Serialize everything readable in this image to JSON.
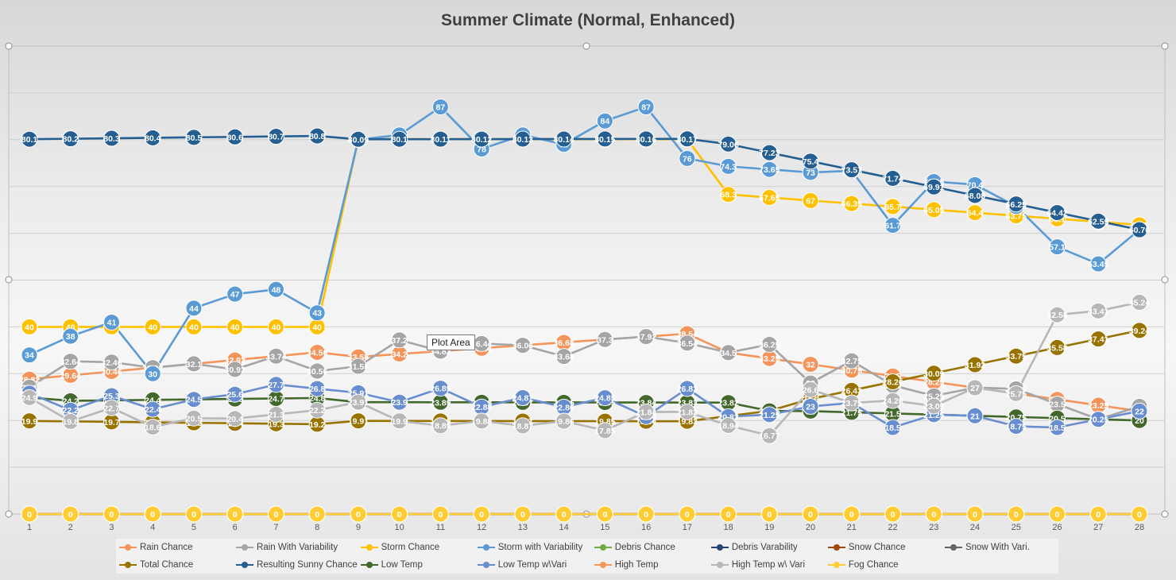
{
  "tooltip": "Plot Area",
  "chart_data": {
    "type": "line",
    "title": "Summer Climate (Normal, Enhanced)",
    "xlabel": "",
    "ylabel": "",
    "categories": [
      "1",
      "2",
      "3",
      "4",
      "5",
      "6",
      "7",
      "8",
      "9",
      "10",
      "11",
      "12",
      "13",
      "14",
      "15",
      "16",
      "17",
      "18",
      "19",
      "20",
      "21",
      "22",
      "23",
      "24",
      "25",
      "26",
      "27",
      "28"
    ],
    "ylim": [
      0,
      100
    ],
    "gridlines": true,
    "legend_position": "bottom",
    "series": [
      {
        "name": "Rain Chance",
        "color": "#F4945A",
        "values": [
          28.82,
          29.64,
          30.46,
          31.28,
          32.1,
          32.92,
          33.74,
          34.56,
          33.58,
          34.2,
          34.82,
          35.44,
          36.06,
          36.68,
          37.3,
          37.92,
          38.54,
          34.5,
          33.25,
          32,
          30.75,
          29.5,
          28.25,
          27,
          25.75,
          24.5,
          23.25,
          22
        ]
      },
      {
        "name": "Rain With Variability",
        "color": "#A5A5A5",
        "values": [
          27.1,
          32.64,
          32.46,
          31.28,
          32.1,
          30.92,
          33.74,
          30.56,
          31.58,
          37.2,
          34.82,
          36.44,
          36.06,
          33.68,
          37.3,
          37.92,
          36.54,
          34.5,
          36.25,
          28,
          32.75,
          27.5,
          25.25,
          27,
          26.75,
          23.5,
          20.25,
          23
        ]
      },
      {
        "name": "Storm Chance",
        "color": "#FFC000",
        "values": [
          40,
          40,
          40,
          40,
          40,
          40,
          40,
          40,
          80.1,
          80.1,
          80.1,
          80.1,
          80.1,
          80.1,
          80.1,
          80.1,
          80.1,
          68.3,
          67.65,
          67,
          66.35,
          65.7,
          65.05,
          64.4,
          63.75,
          63.1,
          62.45,
          61.8
        ]
      },
      {
        "name": "Storm with Variability",
        "color": "#5B9BD5",
        "values": [
          34,
          38,
          41,
          30,
          44,
          47,
          48,
          43,
          80,
          81,
          87,
          78,
          81,
          79,
          84,
          87,
          76,
          74.3,
          73.65,
          73,
          73.35,
          61.7,
          71.05,
          70.4,
          65.75,
          57.1,
          53.45,
          60.76
        ]
      },
      {
        "name": "Debris Chance",
        "color": "#70AD47",
        "values": [
          0,
          0,
          0,
          0,
          0,
          0,
          0,
          0,
          0,
          0,
          0,
          0,
          0,
          0,
          0,
          0,
          0,
          0,
          0,
          0,
          0,
          0,
          0,
          0,
          0,
          0,
          0,
          0
        ]
      },
      {
        "name": "Debris Varability",
        "color": "#264478",
        "values": [
          0,
          0,
          0,
          0,
          0,
          0,
          0,
          0,
          0,
          0,
          0,
          0,
          0,
          0,
          0,
          0,
          0,
          0,
          0,
          0,
          0,
          0,
          0,
          0,
          0,
          0,
          0,
          0
        ]
      },
      {
        "name": "Snow Chance",
        "color": "#9E480E",
        "values": [
          0,
          0,
          0,
          0,
          0,
          0,
          0,
          0,
          0,
          0,
          0,
          0,
          0,
          0,
          0,
          0,
          0,
          0,
          0,
          0,
          0,
          0,
          0,
          0,
          0,
          0,
          0,
          0
        ]
      },
      {
        "name": "Snow With Vari.",
        "color": "#636363",
        "values": [
          0,
          0,
          0,
          0,
          0,
          0,
          0,
          0,
          0,
          0,
          0,
          0,
          0,
          0,
          0,
          0,
          0,
          0,
          0,
          0,
          0,
          0,
          0,
          0,
          0,
          0,
          0,
          0
        ]
      },
      {
        "name": "Total Chance",
        "color": "#997300",
        "values": [
          19.9,
          19.8,
          19.7,
          19.6,
          19.5,
          19.4,
          19.3,
          19.2,
          19.91,
          19.9,
          19.89,
          19.88,
          19.87,
          19.86,
          19.85,
          19.84,
          19.83,
          20.94,
          22.05,
          24.6,
          26.43,
          28.26,
          30.09,
          31.92,
          33.75,
          35.58,
          37.41,
          39.24
        ]
      },
      {
        "name": "Resulting Sunny Chance",
        "color": "#255E91",
        "values": [
          80.1,
          80.2,
          80.3,
          80.4,
          80.5,
          80.6,
          80.7,
          80.8,
          80.09,
          80.1,
          80.11,
          80.12,
          80.13,
          80.14,
          80.15,
          80.16,
          80.17,
          79.06,
          77.23,
          75.4,
          73.57,
          71.74,
          69.91,
          68.08,
          66.25,
          64.42,
          62.59,
          60.76
        ]
      },
      {
        "name": "Low Temp",
        "color": "#43682B",
        "values": [
          24.9,
          24.2,
          24.3,
          24.4,
          24.5,
          24.6,
          24.7,
          24.8,
          23.91,
          23.9,
          23.89,
          23.88,
          23.87,
          23.86,
          23.85,
          23.84,
          23.83,
          23.82,
          22.05,
          22,
          21.75,
          21.5,
          21.25,
          21,
          20.75,
          20.5,
          20.25,
          20
        ]
      },
      {
        "name": "Low Temp w\\Vari",
        "color": "#698ED0",
        "values": [
          25.82,
          22.2,
          25.3,
          22.4,
          24.5,
          25.6,
          27.7,
          26.8,
          25.91,
          23.9,
          26.89,
          22.88,
          24.87,
          22.86,
          24.85,
          20.84,
          26.83,
          20.82,
          21.25,
          23,
          23.75,
          18.5,
          21.25,
          21,
          18.75,
          18.5,
          20.25,
          22
        ]
      },
      {
        "name": "High Temp",
        "color": "#F1975A",
        "values": [
          0,
          0,
          0,
          0,
          0,
          0,
          0,
          0,
          0,
          0,
          0,
          0,
          0,
          0,
          0,
          0,
          0,
          0,
          0,
          0,
          0,
          0,
          0,
          0,
          0,
          0,
          0,
          0
        ]
      },
      {
        "name": "High Temp w\\ Vari",
        "color": "#B7B7B7",
        "values": [
          24.9,
          19.8,
          22.7,
          18.6,
          20.5,
          20.4,
          21.3,
          22.2,
          23.91,
          19.9,
          18.89,
          19.88,
          18.87,
          19.86,
          17.85,
          21.84,
          21.83,
          18.94,
          16.77,
          26.6,
          23.75,
          24.26,
          23.09,
          27,
          25.75,
          42.58,
          43.41,
          45.24
        ]
      },
      {
        "name": "Fog Chance",
        "color": "#FFCD33",
        "values": [
          0,
          0,
          0,
          0,
          0,
          0,
          0,
          0,
          0,
          0,
          0,
          0,
          0,
          0,
          0,
          0,
          0,
          0,
          0,
          0,
          0,
          0,
          0,
          0,
          0,
          0,
          0,
          0
        ]
      }
    ],
    "zero_labels": [
      "0",
      "0",
      "0",
      "0",
      "0",
      "0",
      "0",
      "0",
      "0",
      "0",
      "0",
      "0",
      "0",
      "0",
      "0",
      "0",
      "0",
      "0",
      "0",
      "0",
      "0",
      "0",
      "0",
      "0",
      "0",
      "0",
      "0",
      "0"
    ]
  }
}
